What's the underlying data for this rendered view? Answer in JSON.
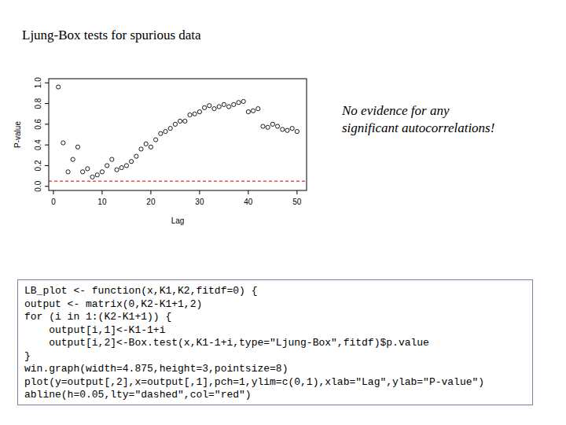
{
  "chart_data": {
    "type": "scatter",
    "title": "Ljung-Box tests for spurious data",
    "x_label": "Lag",
    "y_label": "P-value",
    "annotation": [
      "No evidence for any",
      "significant autocorrelations!"
    ],
    "marker": "circle-open",
    "color": "#000000",
    "x": [
      1,
      2,
      3,
      4,
      5,
      6,
      7,
      8,
      9,
      10,
      11,
      12,
      13,
      14,
      15,
      16,
      17,
      18,
      19,
      20,
      21,
      22,
      23,
      24,
      25,
      26,
      27,
      28,
      29,
      30,
      31,
      32,
      33,
      34,
      35,
      36,
      37,
      38,
      39,
      40,
      41,
      42,
      43,
      44,
      45,
      46,
      47,
      48,
      49,
      50
    ],
    "values": [
      0.96,
      0.42,
      0.14,
      0.26,
      0.38,
      0.14,
      0.17,
      0.09,
      0.11,
      0.14,
      0.2,
      0.26,
      0.16,
      0.18,
      0.2,
      0.24,
      0.29,
      0.36,
      0.41,
      0.38,
      0.45,
      0.51,
      0.53,
      0.56,
      0.6,
      0.63,
      0.63,
      0.69,
      0.7,
      0.72,
      0.76,
      0.78,
      0.75,
      0.77,
      0.79,
      0.77,
      0.79,
      0.81,
      0.82,
      0.72,
      0.73,
      0.75,
      0.58,
      0.57,
      0.6,
      0.58,
      0.55,
      0.54,
      0.56,
      0.53
    ],
    "xlim": [
      -0.96,
      51.96
    ],
    "xticks": [
      0,
      10,
      20,
      30,
      40,
      50
    ],
    "ylim": [
      -0.04,
      1.04
    ],
    "yticks": [
      {
        "value": 0,
        "label": "0.0"
      },
      0.2,
      0.4,
      0.6,
      0.8,
      {
        "value": 1,
        "label": "1.0"
      }
    ],
    "reference_line": {
      "value": 0.05,
      "color": "#cc0000",
      "line_style": "dashed"
    },
    "grid": false
  },
  "code": [
    "LB_plot <- function(x,K1,K2,fitdf=0) {",
    "output <- matrix(0,K2-K1+1,2)",
    "for (i in 1:(K2-K1+1)) {",
    "    output[i,1]<-K1-1+i",
    "    output[i,2]<-Box.test(x,K1-1+i,type=\"Ljung-Box\",fitdf)$p.value",
    "}",
    "win.graph(width=4.875,height=3,pointsize=8)",
    "plot(y=output[,2],x=output[,1],pch=1,ylim=c(0,1),xlab=\"Lag\",ylab=\"P-value\")",
    "abline(h=0.05,lty=\"dashed\",col=\"red\")"
  ]
}
